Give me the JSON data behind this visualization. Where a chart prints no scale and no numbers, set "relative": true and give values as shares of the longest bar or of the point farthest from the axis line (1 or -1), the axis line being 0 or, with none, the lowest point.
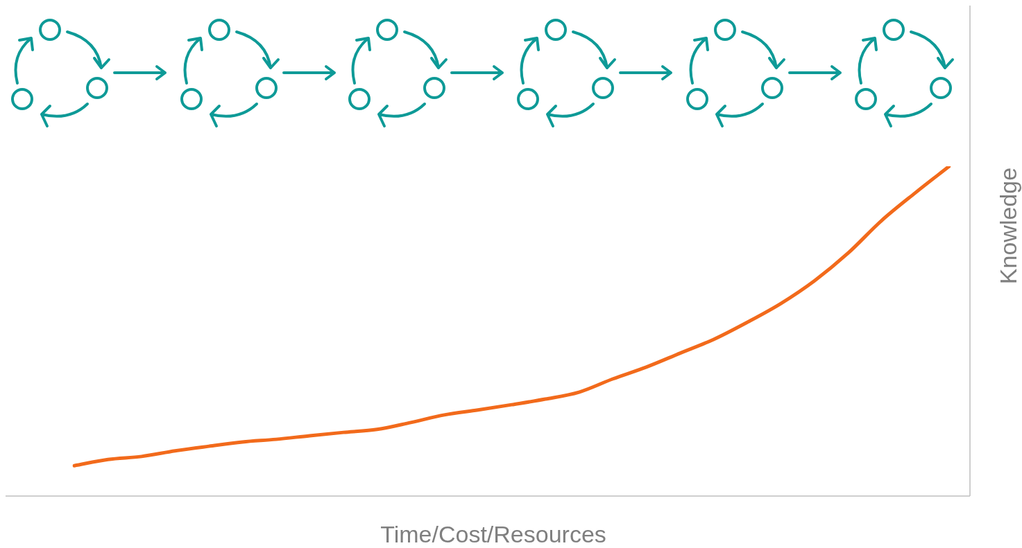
{
  "chart_data": {
    "type": "line",
    "xlabel": "Time/Cost/Resources",
    "ylabel": "Knowledge",
    "relative": true,
    "categories": [
      null,
      null,
      null,
      null,
      null,
      null,
      null,
      null,
      null,
      null,
      null,
      null,
      null,
      null,
      null,
      null,
      null,
      null,
      null,
      null,
      null,
      null,
      null,
      null,
      null,
      null,
      null
    ],
    "values": [
      0.092,
      0.111,
      0.12,
      0.137,
      0.151,
      0.164,
      0.172,
      0.183,
      0.193,
      0.202,
      0.223,
      0.246,
      0.261,
      0.277,
      0.294,
      0.315,
      0.355,
      0.391,
      0.433,
      0.475,
      0.527,
      0.584,
      0.653,
      0.737,
      0.836,
      0.92,
      1
    ],
    "color": "#f26a1b"
  }
}
